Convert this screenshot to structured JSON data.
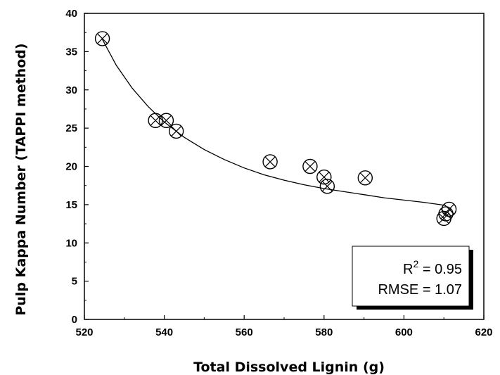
{
  "chart_data": {
    "type": "scatter",
    "title": "",
    "xlabel": "Total Dissolved Lignin (g)",
    "ylabel": "Pulp Kappa Number (TAPPI method)",
    "xlim": [
      520,
      620
    ],
    "ylim": [
      0,
      40
    ],
    "x_ticks": [
      520,
      540,
      560,
      580,
      600,
      620
    ],
    "y_ticks": [
      0,
      5,
      10,
      15,
      20,
      25,
      30,
      35,
      40
    ],
    "grid": false,
    "marker": "circle-x",
    "points": [
      {
        "x": 524.5,
        "y": 36.7
      },
      {
        "x": 537.8,
        "y": 26.0
      },
      {
        "x": 540.5,
        "y": 26.0
      },
      {
        "x": 543.0,
        "y": 24.6
      },
      {
        "x": 566.5,
        "y": 20.6
      },
      {
        "x": 576.5,
        "y": 20.0
      },
      {
        "x": 580.0,
        "y": 18.6
      },
      {
        "x": 580.8,
        "y": 17.4
      },
      {
        "x": 590.3,
        "y": 18.5
      },
      {
        "x": 610.0,
        "y": 13.2
      },
      {
        "x": 610.5,
        "y": 13.8
      },
      {
        "x": 611.3,
        "y": 14.4
      }
    ],
    "fit_curve": {
      "x": [
        524.5,
        528,
        532,
        536,
        540,
        545,
        550,
        555,
        560,
        565,
        570,
        575,
        580,
        585,
        590,
        595,
        600,
        605,
        610.5
      ],
      "y": [
        36.6,
        33.2,
        30.2,
        27.8,
        25.8,
        23.8,
        22.2,
        20.9,
        19.8,
        18.9,
        18.2,
        17.6,
        17.1,
        16.7,
        16.3,
        15.9,
        15.6,
        15.3,
        14.9
      ]
    },
    "legend": {
      "position": "bottom-right",
      "r2_label": "R",
      "r2_sup": "2",
      "r2_value": " = 0.95",
      "rmse_text": "RMSE = 1.07"
    }
  }
}
